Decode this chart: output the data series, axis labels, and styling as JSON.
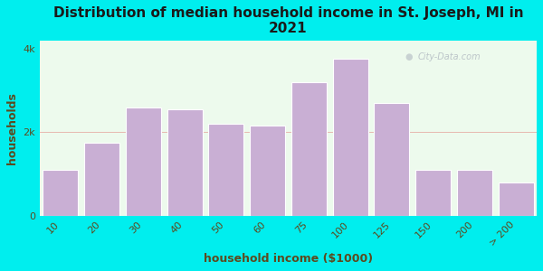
{
  "title": "Distribution of median household income in St. Joseph, MI in\n2021",
  "xlabel": "household income ($1000)",
  "ylabel": "households",
  "bar_labels": [
    "10",
    "20",
    "30",
    "40",
    "50",
    "60",
    "75",
    "100",
    "125",
    "150",
    "200",
    "> 200"
  ],
  "bar_heights": [
    1100,
    1750,
    2600,
    2550,
    2200,
    2150,
    3200,
    3750,
    2700,
    1100,
    1100,
    800
  ],
  "bar_color": "#c9afd4",
  "bar_edgecolor": "#ffffff",
  "background_color": "#00eeee",
  "plot_bg_color": "#edfaed",
  "title_fontsize": 11,
  "title_color": "#1a1a1a",
  "axis_label_fontsize": 9,
  "axis_label_color": "#5c4a1e",
  "tick_fontsize": 8,
  "tick_color": "#5c4a1e",
  "ylim": [
    0,
    4200
  ],
  "yticks": [
    0,
    2000,
    4000
  ],
  "ytick_labels": [
    "0",
    "2k",
    "4k"
  ],
  "watermark_text": "City-Data.com",
  "hline_y": 2000,
  "hline_color": "#e06060"
}
